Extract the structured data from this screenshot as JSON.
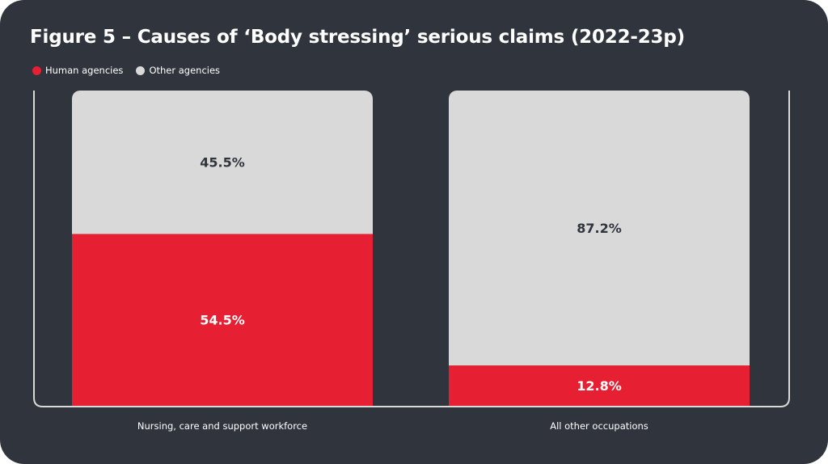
{
  "chart_data": {
    "type": "bar",
    "stacked": true,
    "title": "Figure 5 – Causes of ‘Body stressing’ serious claims (2022-23p)",
    "categories": [
      "Nursing, care and support workforce",
      "All other occupations"
    ],
    "series": [
      {
        "name": "Human agencies",
        "values": [
          54.5,
          12.8
        ],
        "labels": [
          "54.5%",
          "12.8%"
        ],
        "color": "#e71f33",
        "label_color": "#ffffff"
      },
      {
        "name": "Other agencies",
        "values": [
          45.5,
          87.2
        ],
        "labels": [
          "45.5%",
          "87.2%"
        ],
        "color": "#d9d9d9",
        "label_color": "#30343c"
      }
    ],
    "ylim": [
      0,
      100
    ],
    "legend_position": "top-left",
    "grid": false
  },
  "colors": {
    "background": "#30343c",
    "axis_frame": "#d9d9d9"
  }
}
